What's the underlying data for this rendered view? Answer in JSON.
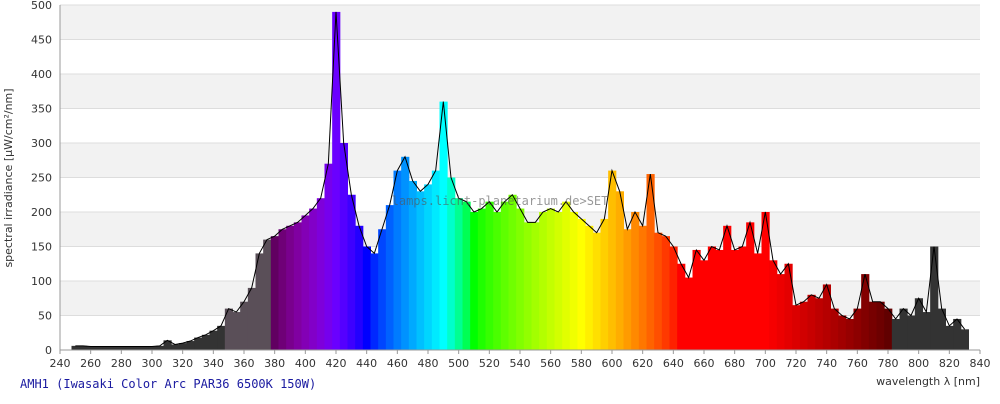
{
  "chart_data": {
    "type": "spectrum",
    "title": "AMH1 (Iwasaki Color Arc PAR36 6500K 150W)",
    "watermark": "lamps.licht-planetarium.de>SET",
    "x_label": "wavelength λ [nm]",
    "y_label": "spectral irradiance [µW/cm²/nm]",
    "x": [
      250,
      255,
      260,
      265,
      270,
      275,
      280,
      285,
      290,
      295,
      300,
      305,
      310,
      315,
      320,
      325,
      330,
      335,
      340,
      345,
      350,
      355,
      360,
      365,
      370,
      375,
      380,
      385,
      390,
      395,
      400,
      405,
      410,
      415,
      420,
      425,
      430,
      435,
      440,
      445,
      450,
      455,
      460,
      465,
      470,
      475,
      480,
      485,
      490,
      495,
      500,
      505,
      510,
      515,
      520,
      525,
      530,
      535,
      540,
      545,
      550,
      555,
      560,
      565,
      570,
      575,
      580,
      585,
      590,
      595,
      600,
      605,
      610,
      615,
      620,
      625,
      630,
      635,
      640,
      645,
      650,
      655,
      660,
      665,
      670,
      675,
      680,
      685,
      690,
      695,
      700,
      705,
      710,
      715,
      720,
      725,
      730,
      735,
      740,
      745,
      750,
      755,
      760,
      765,
      770,
      775,
      780,
      785,
      790,
      795,
      800,
      805,
      810,
      815,
      820,
      825,
      830
    ],
    "values": [
      6,
      6,
      5,
      5,
      5,
      5,
      5,
      5,
      5,
      5,
      5,
      6,
      14,
      8,
      10,
      13,
      18,
      22,
      28,
      35,
      60,
      55,
      70,
      90,
      140,
      160,
      165,
      175,
      180,
      185,
      195,
      205,
      220,
      270,
      490,
      300,
      225,
      180,
      150,
      140,
      175,
      210,
      260,
      280,
      245,
      230,
      240,
      260,
      360,
      250,
      220,
      215,
      200,
      205,
      215,
      200,
      215,
      225,
      205,
      185,
      185,
      200,
      205,
      200,
      215,
      200,
      190,
      180,
      170,
      190,
      260,
      230,
      175,
      200,
      180,
      255,
      170,
      165,
      150,
      125,
      105,
      145,
      130,
      150,
      145,
      180,
      145,
      150,
      185,
      140,
      200,
      130,
      110,
      125,
      65,
      70,
      80,
      75,
      95,
      60,
      50,
      45,
      60,
      110,
      70,
      70,
      60,
      45,
      60,
      50,
      75,
      55,
      150,
      60,
      35,
      45,
      30
    ],
    "xlim": [
      240,
      840
    ],
    "ylim": [
      0,
      500
    ],
    "xticks": [
      240,
      260,
      280,
      300,
      320,
      340,
      360,
      380,
      400,
      420,
      440,
      460,
      480,
      500,
      520,
      540,
      560,
      580,
      600,
      620,
      640,
      660,
      680,
      700,
      720,
      740,
      760,
      780,
      800,
      820,
      840
    ],
    "yticks": [
      0,
      50,
      100,
      150,
      200,
      250,
      300,
      350,
      400,
      450,
      500
    ],
    "grid": true,
    "band_color": "#f2f2f2",
    "outline_color": "#000000"
  }
}
